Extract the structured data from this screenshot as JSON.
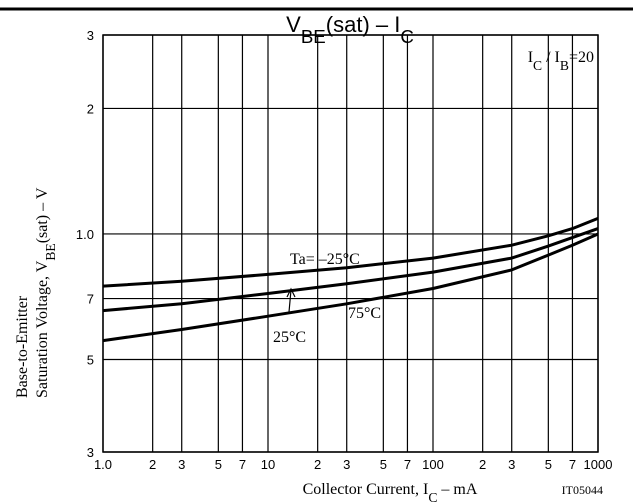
{
  "chart_data": {
    "type": "line",
    "title": [
      {
        "text": "V"
      },
      {
        "text": "BE",
        "sub": true
      },
      {
        "text": "(sat)  –  I"
      },
      {
        "text": "C",
        "sub": true
      }
    ],
    "y_label": [
      [
        {
          "text": "Base-to-Emitter"
        }
      ],
      [
        {
          "text": "Saturation Voltage, V"
        },
        {
          "text": "BE",
          "sub": true
        },
        {
          "text": "(sat)  –  V"
        }
      ]
    ],
    "x_label": [
      {
        "text": "Collector Current, I"
      },
      {
        "text": "C",
        "sub": true
      },
      {
        "text": "  –  mA"
      }
    ],
    "annotation": [
      {
        "text": "I"
      },
      {
        "text": "C",
        "sub": true
      },
      {
        "text": " / I"
      },
      {
        "text": "B",
        "sub": true
      },
      {
        "text": "=20"
      }
    ],
    "figure_id": "IT05044",
    "xscale": "log",
    "yscale": "log",
    "grid": true,
    "xlim": [
      1,
      1000
    ],
    "ylim": [
      0.3,
      3
    ],
    "xticks": [
      {
        "value": 1,
        "label": "1.0"
      },
      2,
      3,
      5,
      7,
      10,
      {
        "value": 20,
        "label": "2"
      },
      {
        "value": 30,
        "label": "3"
      },
      {
        "value": 50,
        "label": "5"
      },
      {
        "value": 70,
        "label": "7"
      },
      100,
      {
        "value": 200,
        "label": "2"
      },
      {
        "value": 300,
        "label": "3"
      },
      {
        "value": 500,
        "label": "5"
      },
      {
        "value": 700,
        "label": "7"
      },
      1000
    ],
    "yticks": [
      {
        "value": 0.3,
        "label": "3"
      },
      {
        "value": 0.5,
        "label": "5"
      },
      {
        "value": 0.7,
        "label": "7"
      },
      {
        "value": 1,
        "label": "1.0"
      },
      2,
      3
    ],
    "x": [
      1,
      3,
      10,
      30,
      100,
      300,
      500,
      700,
      1000
    ],
    "series": [
      {
        "name": "Ta= –25°C",
        "color": "#000000",
        "values": [
          0.75,
          0.77,
          0.8,
          0.83,
          0.875,
          0.94,
          0.99,
          1.03,
          1.09
        ]
      },
      {
        "name": "25°C",
        "color": "#000000",
        "values": [
          0.655,
          0.68,
          0.72,
          0.76,
          0.81,
          0.875,
          0.935,
          0.98,
          1.03
        ]
      },
      {
        "name": "75°C",
        "color": "#000000",
        "values": [
          0.555,
          0.59,
          0.635,
          0.68,
          0.74,
          0.82,
          0.89,
          0.94,
          1.0
        ]
      }
    ]
  }
}
